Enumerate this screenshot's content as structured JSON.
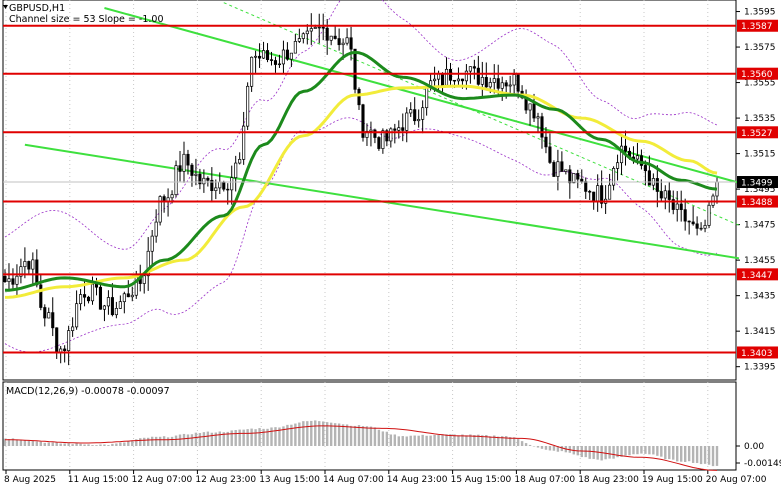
{
  "header": {
    "symbol": "GBPUSD,H1",
    "channel_info": "Channel size = 53 Slope = -1.00"
  },
  "macd": {
    "label": "MACD(12,26,9) -0.00078 -0.00097",
    "scale": [
      "0.00",
      "-0.00149"
    ]
  },
  "chart_data": {
    "type": "candlestick",
    "symbol": "GBPUSD",
    "timeframe": "H1",
    "price_ticks": [
      "1.3595",
      "1.3575",
      "1.3555",
      "1.3535",
      "1.3515",
      "1.3495",
      "1.3475",
      "1.3455",
      "1.3435",
      "1.3415",
      "1.3395"
    ],
    "time_ticks": [
      "8 Aug 2025",
      "11 Aug 15:00",
      "12 Aug 07:00",
      "12 Aug 23:00",
      "13 Aug 15:00",
      "14 Aug 07:00",
      "14 Aug 23:00",
      "15 Aug 15:00",
      "18 Aug 07:00",
      "18 Aug 23:00",
      "19 Aug 15:00",
      "20 Aug 07:00"
    ],
    "levels": [
      {
        "label": "1.3587",
        "value": 1.3587,
        "color": "#e00000"
      },
      {
        "label": "1.3560",
        "value": 1.356,
        "color": "#e00000"
      },
      {
        "label": "1.3527",
        "value": 1.3527,
        "color": "#e00000"
      },
      {
        "label": "1.3488",
        "value": 1.3488,
        "color": "#e00000"
      },
      {
        "label": "1.3447",
        "value": 1.3447,
        "color": "#e00000"
      },
      {
        "label": "1.3403",
        "value": 1.3403,
        "color": "#e00000"
      }
    ],
    "current_price": {
      "label": "1.3499",
      "value": 1.3499
    },
    "close_anchors": [
      {
        "bar": 0,
        "price": 1.3443
      },
      {
        "bar": 6,
        "price": 1.3455
      },
      {
        "bar": 10,
        "price": 1.3425
      },
      {
        "bar": 14,
        "price": 1.3405
      },
      {
        "bar": 20,
        "price": 1.3438
      },
      {
        "bar": 27,
        "price": 1.3428
      },
      {
        "bar": 33,
        "price": 1.344
      },
      {
        "bar": 40,
        "price": 1.349
      },
      {
        "bar": 45,
        "price": 1.351
      },
      {
        "bar": 50,
        "price": 1.3498
      },
      {
        "bar": 56,
        "price": 1.35
      },
      {
        "bar": 59,
        "price": 1.351
      },
      {
        "bar": 62,
        "price": 1.357
      },
      {
        "bar": 68,
        "price": 1.3568
      },
      {
        "bar": 73,
        "price": 1.3575
      },
      {
        "bar": 80,
        "price": 1.3585
      },
      {
        "bar": 86,
        "price": 1.3578
      },
      {
        "bar": 90,
        "price": 1.353
      },
      {
        "bar": 95,
        "price": 1.3522
      },
      {
        "bar": 102,
        "price": 1.3535
      },
      {
        "bar": 108,
        "price": 1.3555
      },
      {
        "bar": 114,
        "price": 1.3562
      },
      {
        "bar": 120,
        "price": 1.3558
      },
      {
        "bar": 128,
        "price": 1.3556
      },
      {
        "bar": 133,
        "price": 1.354
      },
      {
        "bar": 138,
        "price": 1.3508
      },
      {
        "bar": 144,
        "price": 1.3498
      },
      {
        "bar": 150,
        "price": 1.3492
      },
      {
        "bar": 155,
        "price": 1.3518
      },
      {
        "bar": 160,
        "price": 1.3508
      },
      {
        "bar": 165,
        "price": 1.349
      },
      {
        "bar": 171,
        "price": 1.3478
      },
      {
        "bar": 175,
        "price": 1.3468
      },
      {
        "bar": 177,
        "price": 1.348
      },
      {
        "bar": 179,
        "price": 1.3499
      }
    ],
    "ma_fast_anchors": [
      {
        "bar": 0,
        "price": 1.3438
      },
      {
        "bar": 15,
        "price": 1.3445
      },
      {
        "bar": 30,
        "price": 1.344
      },
      {
        "bar": 40,
        "price": 1.3455
      },
      {
        "bar": 55,
        "price": 1.348
      },
      {
        "bar": 65,
        "price": 1.352
      },
      {
        "bar": 75,
        "price": 1.355
      },
      {
        "bar": 88,
        "price": 1.3572
      },
      {
        "bar": 100,
        "price": 1.3558
      },
      {
        "bar": 115,
        "price": 1.3546
      },
      {
        "bar": 128,
        "price": 1.3548
      },
      {
        "bar": 138,
        "price": 1.354
      },
      {
        "bar": 150,
        "price": 1.3523
      },
      {
        "bar": 160,
        "price": 1.351
      },
      {
        "bar": 170,
        "price": 1.35
      },
      {
        "bar": 179,
        "price": 1.3495
      }
    ],
    "ma_slow_anchors": [
      {
        "bar": 0,
        "price": 1.3434
      },
      {
        "bar": 15,
        "price": 1.344
      },
      {
        "bar": 30,
        "price": 1.3445
      },
      {
        "bar": 45,
        "price": 1.3455
      },
      {
        "bar": 60,
        "price": 1.3485
      },
      {
        "bar": 75,
        "price": 1.3525
      },
      {
        "bar": 88,
        "price": 1.3548
      },
      {
        "bar": 100,
        "price": 1.3552
      },
      {
        "bar": 115,
        "price": 1.3553
      },
      {
        "bar": 130,
        "price": 1.3548
      },
      {
        "bar": 145,
        "price": 1.3535
      },
      {
        "bar": 160,
        "price": 1.3522
      },
      {
        "bar": 172,
        "price": 1.3511
      },
      {
        "bar": 179,
        "price": 1.3504
      }
    ],
    "channel": {
      "upper": [
        {
          "bar": 25,
          "price": 1.3597
        },
        {
          "bar": 179,
          "price": 1.3502
        }
      ],
      "lower": [
        {
          "bar": 5,
          "price": 1.352
        },
        {
          "bar": 179,
          "price": 1.3458
        }
      ],
      "mid": [
        {
          "bar": 55,
          "price": 1.36
        },
        {
          "bar": 179,
          "price": 1.348
        }
      ]
    },
    "macd_anchors": [
      {
        "bar": 0,
        "h": 0.0003
      },
      {
        "bar": 15,
        "h": 0.0001
      },
      {
        "bar": 25,
        "h": 5e-05
      },
      {
        "bar": 38,
        "h": 0.00035
      },
      {
        "bar": 52,
        "h": 0.00055
      },
      {
        "bar": 65,
        "h": 0.0007
      },
      {
        "bar": 78,
        "h": 0.001
      },
      {
        "bar": 90,
        "h": 0.0008
      },
      {
        "bar": 100,
        "h": 0.0004
      },
      {
        "bar": 112,
        "h": 0.00045
      },
      {
        "bar": 125,
        "h": 0.0004
      },
      {
        "bar": 138,
        "h": -0.0002
      },
      {
        "bar": 150,
        "h": -0.00055
      },
      {
        "bar": 160,
        "h": -0.0003
      },
      {
        "bar": 170,
        "h": -0.0006
      },
      {
        "bar": 179,
        "h": -0.00078
      }
    ],
    "signal_anchors": [
      {
        "bar": 0,
        "h": 0.00025
      },
      {
        "bar": 20,
        "h": 0.00012
      },
      {
        "bar": 40,
        "h": 0.00025
      },
      {
        "bar": 60,
        "h": 0.0005
      },
      {
        "bar": 80,
        "h": 0.0008
      },
      {
        "bar": 95,
        "h": 0.0007
      },
      {
        "bar": 115,
        "h": 0.0004
      },
      {
        "bar": 130,
        "h": 0.0003
      },
      {
        "bar": 145,
        "h": -0.0002
      },
      {
        "bar": 160,
        "h": -0.00045
      },
      {
        "bar": 179,
        "h": -0.00097
      }
    ]
  }
}
